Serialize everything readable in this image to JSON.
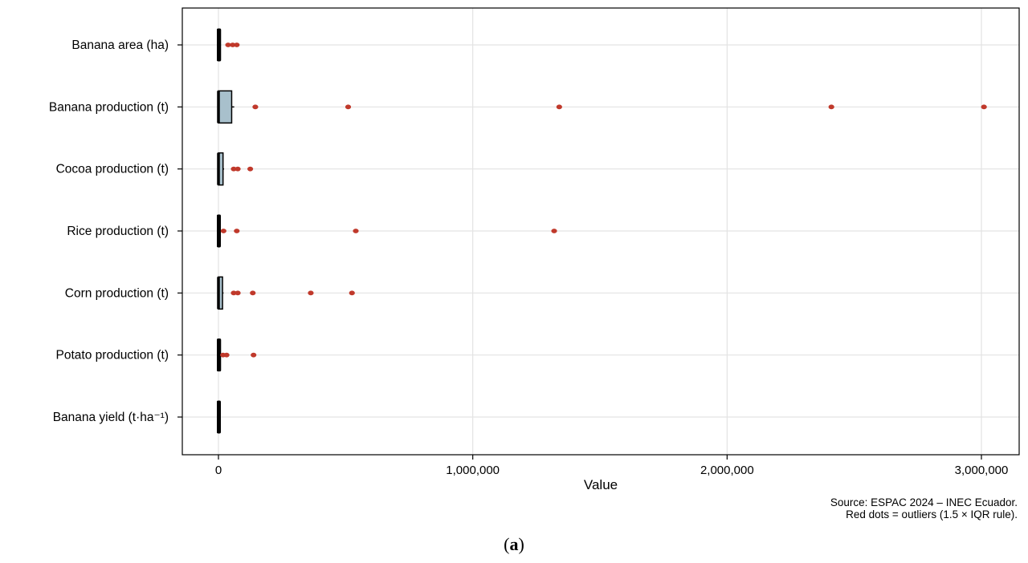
{
  "chart_data": {
    "type": "boxplot",
    "orientation": "horizontal",
    "xlabel": "Value",
    "xlim": [
      -140000,
      3150000
    ],
    "xticks": [
      0,
      1000000,
      2000000,
      3000000
    ],
    "xtick_labels": [
      "0",
      "1,000,000",
      "2,000,000",
      "3,000,000"
    ],
    "grid": true,
    "box_fill": "#a8c0cc",
    "outlier_color": "#c0392b",
    "categories": [
      "Banana area (ha)",
      "Banana production (t)",
      "Cocoa production (t)",
      "Rice production (t)",
      "Corn production (t)",
      "Potato production (t)",
      "Banana yield (t·ha⁻¹)"
    ],
    "boxes": [
      {
        "q1": 0,
        "q3": 4000,
        "whisker_high": 8000,
        "outliers": [
          38000,
          56000,
          72000
        ]
      },
      {
        "q1": 0,
        "q3": 52000,
        "whisker_high": 62000,
        "outliers": [
          145000,
          510000,
          1340000,
          2410000,
          3010000
        ]
      },
      {
        "q1": 0,
        "q3": 18000,
        "whisker_high": 22000,
        "outliers": [
          60000,
          76000,
          125000
        ]
      },
      {
        "q1": 0,
        "q3": 2000,
        "whisker_high": 5000,
        "outliers": [
          20000,
          72000,
          540000,
          1320000
        ]
      },
      {
        "q1": 0,
        "q3": 16000,
        "whisker_high": 20000,
        "outliers": [
          60000,
          76000,
          135000,
          363000,
          525000
        ]
      },
      {
        "q1": 0,
        "q3": 4000,
        "whisker_high": 6000,
        "outliers": [
          18000,
          32000,
          138000
        ]
      },
      {
        "q1": 0,
        "q3": 1500,
        "whisker_high": 3000,
        "outliers": []
      }
    ]
  },
  "notes": {
    "source": "Source: ESPAC 2024 – INEC Ecuador.",
    "outliers": "Red dots = outliers (1.5 × IQR rule)."
  },
  "panel_label": "a"
}
